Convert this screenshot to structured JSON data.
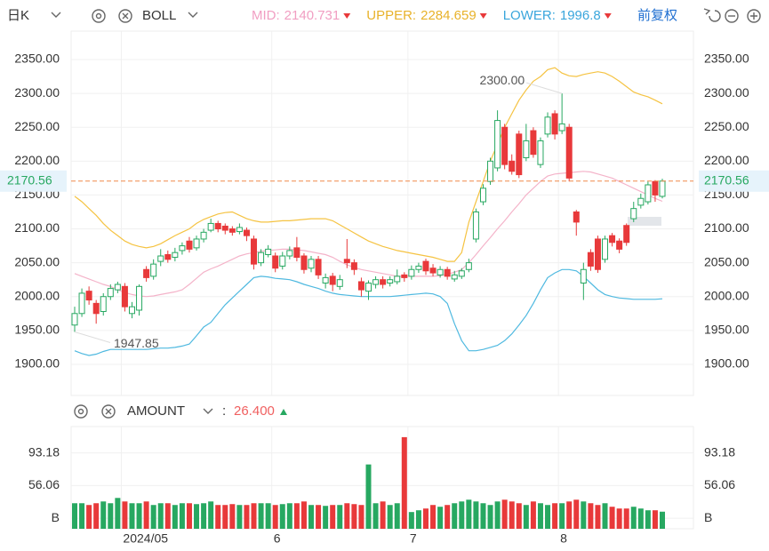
{
  "chart_data": {
    "type": "candlestick",
    "period": "日K",
    "indicator": "BOLL",
    "adjust": "前复权",
    "colors": {
      "up": "#27a861",
      "down": "#e8393a"
    },
    "categories": [
      null,
      null,
      null,
      null,
      null,
      null,
      null,
      "2024/05",
      null,
      null,
      null,
      null,
      null,
      null,
      null,
      null,
      null,
      null,
      null,
      null,
      null,
      null,
      null,
      null,
      null,
      null,
      null,
      null,
      "6",
      null,
      null,
      null,
      null,
      null,
      null,
      null,
      null,
      null,
      null,
      null,
      null,
      null,
      null,
      null,
      null,
      null,
      null,
      "7",
      null,
      null,
      null,
      null,
      null,
      null,
      null,
      null,
      null,
      null,
      null,
      null,
      null,
      null,
      null,
      null,
      null,
      null,
      null,
      null,
      "8",
      null,
      null,
      null,
      null,
      null,
      null,
      null,
      null,
      null,
      null,
      null,
      null,
      null,
      null
    ],
    "candles": {
      "open": [
        1958,
        1975,
        2008,
        1990,
        1978,
        2000,
        2010,
        2015,
        1975,
        1980,
        2040,
        2030,
        2052,
        2062,
        2058,
        2068,
        2082,
        2072,
        2085,
        2098,
        2108,
        2104,
        2100,
        2096,
        2098,
        2085,
        2050,
        2062,
        2060,
        2045,
        2060,
        2072,
        2060,
        2042,
        2055,
        2020,
        2030,
        2015,
        2055,
        2050,
        2022,
        2008,
        2018,
        2025,
        2020,
        2022,
        2032,
        2030,
        2040,
        2052,
        2042,
        2032,
        2040,
        2026,
        2030,
        2040,
        2085,
        2140,
        2170,
        2190,
        2250,
        2200,
        2240,
        2205,
        2245,
        2195,
        2240,
        2270,
        2245,
        2250,
        2125,
        2020,
        2065,
        2085,
        2055,
        2090,
        2082,
        2105,
        2115,
        2135,
        2140,
        2170,
        2148
      ],
      "high": [
        1985,
        2012,
        2015,
        1995,
        2005,
        2018,
        2022,
        2020,
        1992,
        2018,
        2045,
        2055,
        2070,
        2068,
        2072,
        2080,
        2088,
        2090,
        2100,
        2115,
        2112,
        2108,
        2104,
        2108,
        2102,
        2090,
        2070,
        2076,
        2065,
        2066,
        2074,
        2088,
        2064,
        2060,
        2060,
        2034,
        2035,
        2032,
        2085,
        2055,
        2028,
        2024,
        2030,
        2030,
        2030,
        2040,
        2036,
        2046,
        2050,
        2056,
        2048,
        2045,
        2044,
        2038,
        2042,
        2056,
        2130,
        2166,
        2205,
        2275,
        2255,
        2210,
        2245,
        2255,
        2250,
        2235,
        2272,
        2275,
        2300,
        2255,
        2128,
        2050,
        2070,
        2090,
        2090,
        2094,
        2086,
        2108,
        2140,
        2152,
        2170,
        2172,
        2174
      ],
      "low": [
        1947.85,
        1970,
        1988,
        1960,
        1972,
        1995,
        2005,
        1978,
        1968,
        1972,
        2022,
        2025,
        2045,
        2050,
        2052,
        2062,
        2065,
        2068,
        2080,
        2095,
        2095,
        2092,
        2090,
        2092,
        2082,
        2040,
        2045,
        2058,
        2036,
        2040,
        2055,
        2052,
        2034,
        2036,
        2026,
        2012,
        2008,
        2010,
        2042,
        2032,
        2000,
        1995,
        2012,
        2012,
        2015,
        2018,
        2022,
        2025,
        2035,
        2032,
        2030,
        2028,
        2025,
        2022,
        2026,
        2036,
        2080,
        2135,
        2165,
        2185,
        2188,
        2180,
        2175,
        2200,
        2205,
        2190,
        2235,
        2232,
        2240,
        2170,
        2090,
        1995,
        2038,
        2035,
        2050,
        2074,
        2064,
        2075,
        2110,
        2130,
        2136,
        2140,
        2145
      ],
      "close": [
        1975,
        2005,
        1995,
        1975,
        2000,
        2012,
        2018,
        1985,
        1985,
        2015,
        2028,
        2048,
        2060,
        2055,
        2065,
        2075,
        2070,
        2085,
        2095,
        2108,
        2100,
        2098,
        2095,
        2102,
        2090,
        2048,
        2065,
        2070,
        2042,
        2060,
        2068,
        2058,
        2040,
        2055,
        2032,
        2028,
        2018,
        2025,
        2050,
        2040,
        2010,
        2020,
        2025,
        2018,
        2025,
        2030,
        2028,
        2040,
        2045,
        2038,
        2035,
        2040,
        2030,
        2032,
        2038,
        2050,
        2125,
        2160,
        2200,
        2260,
        2195,
        2185,
        2180,
        2230,
        2210,
        2230,
        2265,
        2240,
        2255,
        2175,
        2110,
        2040,
        2045,
        2040,
        2085,
        2080,
        2070,
        2080,
        2130,
        2145,
        2165,
        2150,
        2170.56
      ]
    },
    "series": [
      {
        "name": "MID:",
        "color": "#f4b3c9",
        "label_color": "#f19ec2",
        "values": [
          2034,
          2030,
          2026,
          2022,
          2018,
          2015,
          2010,
          2006,
          2003,
          2001,
          2000,
          2001,
          2003,
          2005,
          2007,
          2010,
          2018,
          2027,
          2036,
          2041,
          2045,
          2050,
          2055,
          2060,
          2063,
          2065,
          2067,
          2068,
          2069,
          2070,
          2070,
          2069,
          2068,
          2066,
          2064,
          2062,
          2058,
          2052,
          2047,
          2043,
          2040,
          2038,
          2036,
          2034,
          2032,
          2030,
          2030,
          2030,
          2030,
          2030,
          2030,
          2031,
          2033,
          2036,
          2040,
          2050,
          2062,
          2075,
          2087,
          2100,
          2112,
          2125,
          2137,
          2150,
          2160,
          2170,
          2178,
          2181,
          2182,
          2183,
          2184,
          2185,
          2184,
          2181,
          2178,
          2175,
          2170,
          2165,
          2160,
          2155,
          2150,
          2145,
          2140.731
        ]
      },
      {
        "name": "UPPER:",
        "color": "#f5c342",
        "label_color": "#e8b22a",
        "values": [
          2148,
          2140,
          2130,
          2120,
          2108,
          2098,
          2090,
          2082,
          2077,
          2074,
          2072,
          2074,
          2078,
          2084,
          2090,
          2095,
          2100,
          2108,
          2114,
          2118,
          2122,
          2124,
          2125,
          2120,
          2115,
          2112,
          2110,
          2110,
          2111,
          2112,
          2112,
          2113,
          2114,
          2115,
          2115,
          2115,
          2112,
          2106,
          2100,
          2094,
          2088,
          2082,
          2078,
          2074,
          2071,
          2068,
          2066,
          2064,
          2062,
          2060,
          2058,
          2055,
          2052,
          2052,
          2065,
          2110,
          2140,
          2170,
          2200,
          2225,
          2250,
          2270,
          2290,
          2305,
          2318,
          2325,
          2335,
          2338,
          2330,
          2326,
          2325,
          2328,
          2330,
          2332,
          2330,
          2325,
          2318,
          2310,
          2302,
          2298,
          2295,
          2290,
          2284.659
        ]
      },
      {
        "name": "LOWER:",
        "color": "#4fb9e0",
        "label_color": "#3aa6dc",
        "values": [
          1920,
          1916,
          1913,
          1915,
          1919,
          1922,
          1922,
          1922,
          1922,
          1922,
          1922,
          1923,
          1924,
          1924,
          1925,
          1927,
          1930,
          1942,
          1955,
          1962,
          1975,
          1988,
          1998,
          2008,
          2018,
          2028,
          2030,
          2029,
          2027,
          2026,
          2025,
          2022,
          2018,
          2015,
          2012,
          2008,
          2005,
          2003,
          2002,
          2001,
          2000,
          2000,
          2000,
          2000,
          2000,
          2001,
          2002,
          2003,
          2004,
          2005,
          2004,
          2000,
          1990,
          1960,
          1935,
          1920,
          1920,
          1922,
          1925,
          1928,
          1935,
          1945,
          1958,
          1972,
          1990,
          2010,
          2028,
          2035,
          2040,
          2040,
          2038,
          2030,
          2020,
          2010,
          2003,
          2000,
          1998,
          1997,
          1996,
          1996,
          1996,
          1996,
          1996.8
        ]
      }
    ],
    "ylim": [
      1854,
      2392
    ],
    "yticks": [
      {
        "value": 1900,
        "label": "1900.00"
      },
      {
        "value": 1950,
        "label": "1950.00"
      },
      {
        "value": 2000,
        "label": "2000.00"
      },
      {
        "value": 2050,
        "label": "2050.00"
      },
      {
        "value": 2100,
        "label": "2100.00"
      },
      {
        "value": 2150,
        "label": "2150.00"
      },
      {
        "value": 2200,
        "label": "2200.00"
      },
      {
        "value": 2250,
        "label": "2250.00"
      },
      {
        "value": 2300,
        "label": "2300.00"
      },
      {
        "value": 2350,
        "label": "2350.00"
      }
    ],
    "grid": true,
    "last_price": {
      "value": 2170.56,
      "label": "2170.56",
      "color": "#f08a4b"
    },
    "max_label": "2300.00",
    "min_label": "1947.85",
    "volume": {
      "name": "AMOUNT",
      "separator": ":",
      "last_label": "26.400",
      "values": [
        36,
        36,
        34,
        36,
        38,
        36,
        42,
        38,
        36,
        36,
        38,
        34,
        36,
        36,
        34,
        36,
        36,
        35,
        36,
        38,
        34,
        34,
        35,
        34,
        34,
        36,
        36,
        36,
        34,
        35,
        36,
        36,
        38,
        34,
        34,
        33,
        34,
        34,
        36,
        35,
        34,
        80,
        36,
        38,
        34,
        36,
        111,
        26,
        28,
        30,
        34,
        32,
        34,
        36,
        38,
        40,
        38,
        36,
        34,
        38,
        40,
        38,
        36,
        34,
        38,
        36,
        34,
        36,
        36,
        38,
        40,
        38,
        36,
        34,
        36,
        32,
        30,
        30,
        32,
        30,
        28,
        28,
        26.4
      ],
      "ylim": [
        7,
        123
      ],
      "yticks": [
        {
          "value": 18.94,
          "label": "B"
        },
        56.06,
        93.18
      ]
    }
  }
}
